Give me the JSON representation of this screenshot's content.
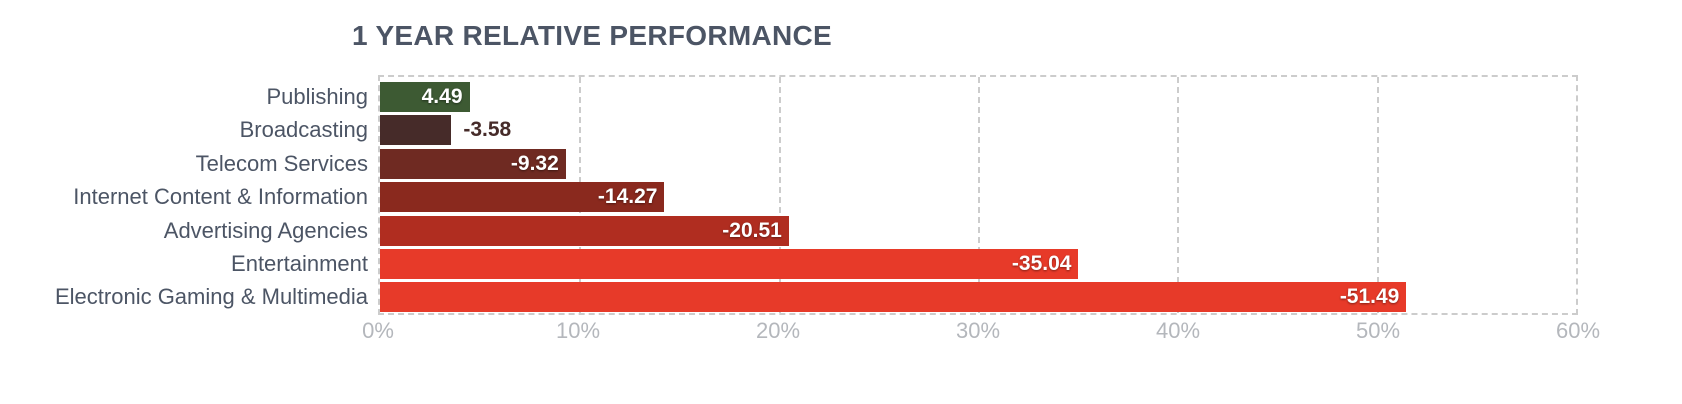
{
  "colors": {
    "background": "#ffffff",
    "title_text": "#4c5565",
    "category_label_text": "#4c5565",
    "axis_label_text": "#b4b7bc",
    "gridline": "#cccccc",
    "value_label_inside": "#ffffff"
  },
  "chart_data": {
    "type": "bar",
    "orientation": "horizontal",
    "title": "1 YEAR RELATIVE PERFORMANCE",
    "categories": [
      "Publishing",
      "Broadcasting",
      "Telecom Services",
      "Internet Content & Information",
      "Advertising Agencies",
      "Entertainment",
      "Electronic Gaming & Multimedia"
    ],
    "values": [
      4.49,
      -3.58,
      -9.32,
      -14.27,
      -20.51,
      -35.04,
      -51.49
    ],
    "items": [
      {
        "label": "Publishing",
        "value": 4.49,
        "display": "4.49",
        "color": "#3d5a33",
        "label_inside": true
      },
      {
        "label": "Broadcasting",
        "value": -3.58,
        "display": "-3.58",
        "color": "#462b29",
        "label_inside": false
      },
      {
        "label": "Telecom Services",
        "value": -9.32,
        "display": "-9.32",
        "color": "#6f2a22",
        "label_inside": true
      },
      {
        "label": "Internet Content & Information",
        "value": -14.27,
        "display": "-14.27",
        "color": "#8a291e",
        "label_inside": true
      },
      {
        "label": "Advertising Agencies",
        "value": -20.51,
        "display": "-20.51",
        "color": "#b02d20",
        "label_inside": true
      },
      {
        "label": "Entertainment",
        "value": -35.04,
        "display": "-35.04",
        "color": "#e73a29",
        "label_inside": true
      },
      {
        "label": "Electronic Gaming & Multimedia",
        "value": -51.49,
        "display": "-51.49",
        "color": "#e73a29",
        "label_inside": true
      }
    ],
    "x_axis": {
      "min": 0,
      "max": 60,
      "unit": "%",
      "tick_values": [
        0,
        10,
        20,
        30,
        40,
        50,
        60
      ],
      "tick_labels": [
        "0%",
        "10%",
        "20%",
        "30%",
        "40%",
        "50%",
        "60%"
      ]
    },
    "grid": {
      "show": true,
      "style": "dashed",
      "color": "#cccccc"
    },
    "legend": {
      "show": false
    }
  }
}
